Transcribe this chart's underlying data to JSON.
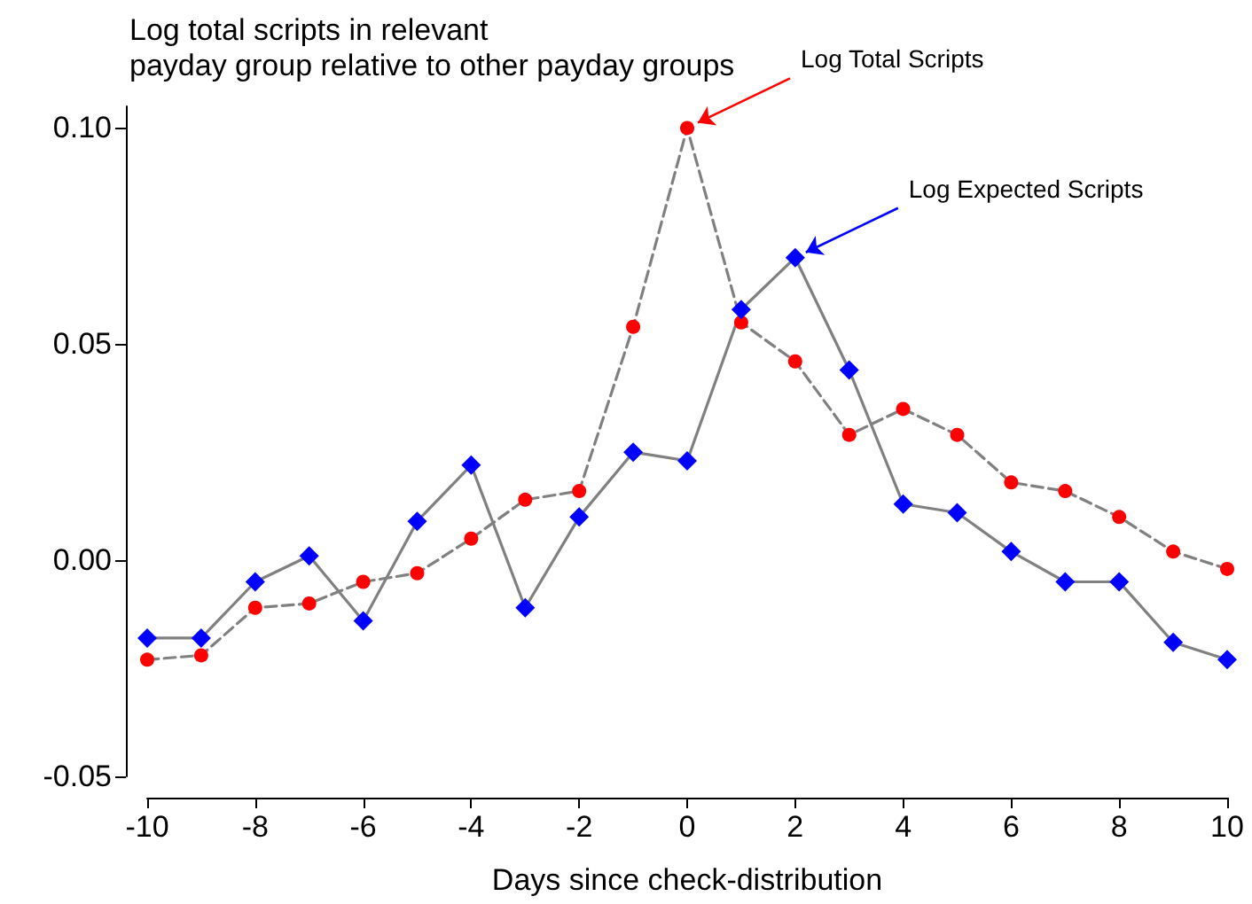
{
  "chart_data": {
    "type": "line",
    "title": "Log total scripts in relevant\npayday group relative to other payday groups",
    "xlabel": "Days since check-distribution",
    "x": [
      -10,
      -9,
      -8,
      -7,
      -6,
      -5,
      -4,
      -3,
      -2,
      -1,
      0,
      1,
      2,
      3,
      4,
      5,
      6,
      7,
      8,
      9,
      10
    ],
    "series": [
      {
        "name": "Log Total Scripts",
        "color": "#ff0000",
        "marker": "circle",
        "line_style": "dashed",
        "values": [
          -0.023,
          -0.022,
          -0.011,
          -0.01,
          -0.005,
          -0.003,
          0.005,
          0.014,
          0.016,
          0.054,
          0.1,
          0.055,
          0.046,
          0.029,
          0.035,
          0.029,
          0.018,
          0.016,
          0.01,
          0.002,
          -0.002
        ]
      },
      {
        "name": "Log Expected Scripts",
        "color": "#0000ff",
        "marker": "diamond",
        "line_style": "solid",
        "values": [
          -0.018,
          -0.018,
          -0.005,
          0.001,
          -0.014,
          0.009,
          0.022,
          -0.011,
          0.01,
          0.025,
          0.023,
          0.058,
          0.07,
          0.044,
          0.013,
          0.011,
          0.002,
          -0.005,
          -0.005,
          -0.019,
          -0.023
        ]
      }
    ],
    "xlim": [
      -10,
      10
    ],
    "xticks": [
      -10,
      -8,
      -6,
      -4,
      -2,
      0,
      2,
      4,
      6,
      8,
      10
    ],
    "ylim": [
      -0.05,
      0.105
    ],
    "yticks": [
      {
        "value": -0.05,
        "label": "-0.05"
      },
      {
        "value": 0,
        "label": "0.00"
      },
      {
        "value": 0.05,
        "label": "0.05"
      },
      {
        "value": 0.1,
        "label": "0.10"
      }
    ],
    "grid": false,
    "legend": false
  }
}
